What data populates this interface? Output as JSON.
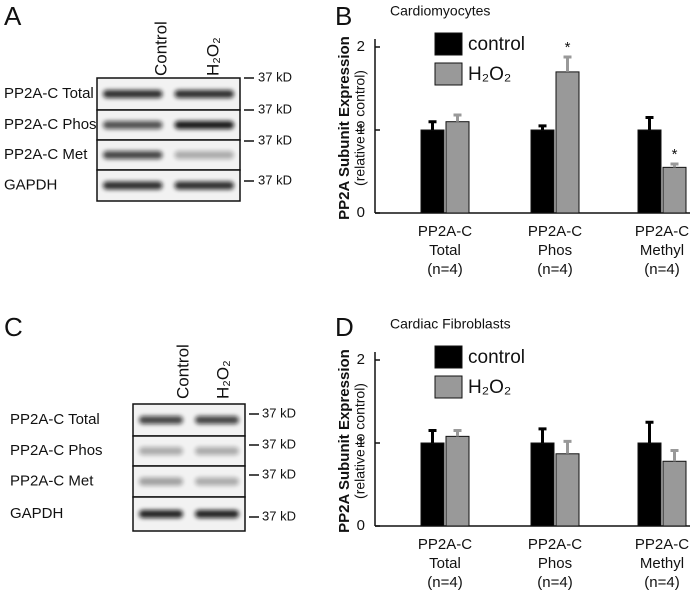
{
  "figure": {
    "panels": [
      "A",
      "B",
      "C",
      "D"
    ]
  },
  "blots": [
    {
      "lanes": [
        "Control",
        "H₂O₂"
      ],
      "rows": [
        "PP2A-C Total",
        "PP2A-C Phos",
        "PP2A-C Met",
        "GAPDH"
      ],
      "markers": [
        "37 kD",
        "37 kD",
        "37 kD",
        "37 kD"
      ]
    },
    {
      "lanes": [
        "Control",
        "H₂O₂"
      ],
      "rows": [
        "PP2A-C Total",
        "PP2A-C Phos",
        "PP2A-C Met",
        "GAPDH"
      ],
      "markers": [
        "37 kD",
        "37 kD",
        "37 kD",
        "37 kD"
      ]
    }
  ],
  "chart_data": [
    {
      "type": "bar",
      "title": "Cardiomyocytes",
      "ylabel": "PP2A Subunit Expression",
      "ylabel_note": "(relative to control)",
      "categories": [
        [
          "PP2A-C",
          "Total",
          "(n=4)"
        ],
        [
          "PP2A-C",
          "Phos",
          "(n=4)"
        ],
        [
          "PP2A-C",
          "Methyl",
          "(n=4)"
        ]
      ],
      "series": [
        {
          "name": "control",
          "color": "#000000",
          "values": [
            1.0,
            1.0,
            1.0
          ],
          "errors": [
            0.1,
            0.05,
            0.15
          ]
        },
        {
          "name": "H₂O₂",
          "color": "#999999",
          "values": [
            1.1,
            1.7,
            0.55
          ],
          "errors": [
            0.08,
            0.18,
            0.04
          ],
          "annotations": [
            null,
            "*",
            "*"
          ]
        }
      ],
      "ylim": [
        0,
        2
      ],
      "yticks": [
        0,
        1,
        2
      ]
    },
    {
      "type": "bar",
      "title": "Cardiac Fibroblasts",
      "ylabel": "PP2A Subunit Expression",
      "ylabel_note": "(relative to control)",
      "categories": [
        [
          "PP2A-C",
          "Total",
          "(n=4)"
        ],
        [
          "PP2A-C",
          "Phos",
          "(n=4)"
        ],
        [
          "PP2A-C",
          "Methyl",
          "(n=4)"
        ]
      ],
      "series": [
        {
          "name": "control",
          "color": "#000000",
          "values": [
            1.0,
            1.0,
            1.0
          ],
          "errors": [
            0.15,
            0.17,
            0.25
          ]
        },
        {
          "name": "H₂O₂",
          "color": "#999999",
          "values": [
            1.08,
            0.87,
            0.78
          ],
          "errors": [
            0.07,
            0.15,
            0.13
          ]
        }
      ],
      "ylim": [
        0,
        2
      ],
      "yticks": [
        0,
        1,
        2
      ]
    }
  ]
}
